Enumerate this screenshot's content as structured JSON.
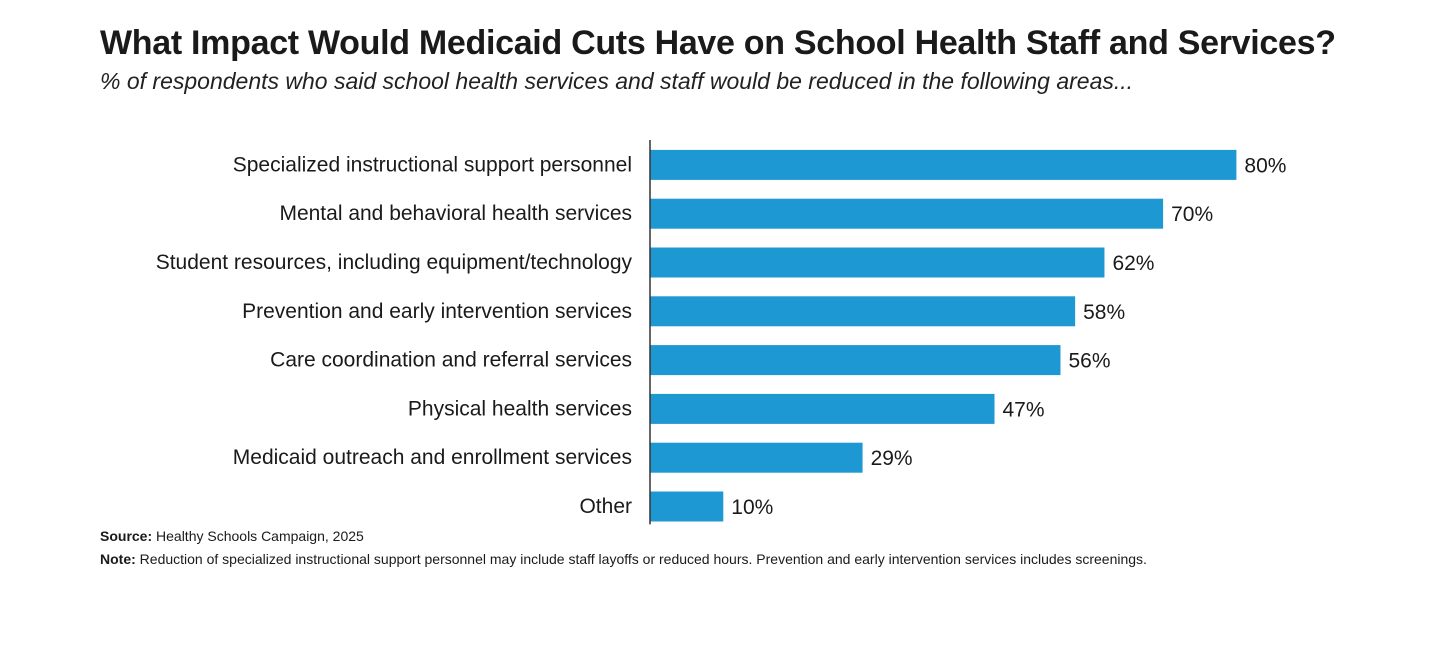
{
  "title": "What Impact Would Medicaid Cuts Have on School Health Staff and Services?",
  "subtitle": "% of respondents who said school health services and staff would be reduced in the following areas...",
  "chart_data": {
    "type": "bar",
    "orientation": "horizontal",
    "title": "What Impact Would Medicaid Cuts Have on School Health Staff and Services?",
    "subtitle": "% of respondents who said school health services and staff would be reduced in the following areas...",
    "categories": [
      "Specialized instructional support personnel",
      "Mental and behavioral health services",
      "Student resources, including equipment/technology",
      "Prevention and early intervention services",
      "Care coordination and referral services",
      "Physical health services",
      "Medicaid outreach and enrollment services",
      "Other"
    ],
    "values": [
      80,
      70,
      62,
      58,
      56,
      47,
      29,
      10
    ],
    "value_labels": [
      "80%",
      "70%",
      "62%",
      "58%",
      "56%",
      "47%",
      "29%",
      "10%"
    ],
    "unit": "%",
    "xlim": [
      0,
      100
    ],
    "xlabel": "",
    "ylabel": "",
    "grid": false,
    "bar_color": "#1e98d3"
  },
  "footer": {
    "source_label": "Source:",
    "source_text": " Healthy Schools Campaign, 2025",
    "note_label": "Note:",
    "note_text": " Reduction of specialized instructional support personnel may include staff layoffs or reduced hours. Prevention and early intervention services includes screenings."
  }
}
